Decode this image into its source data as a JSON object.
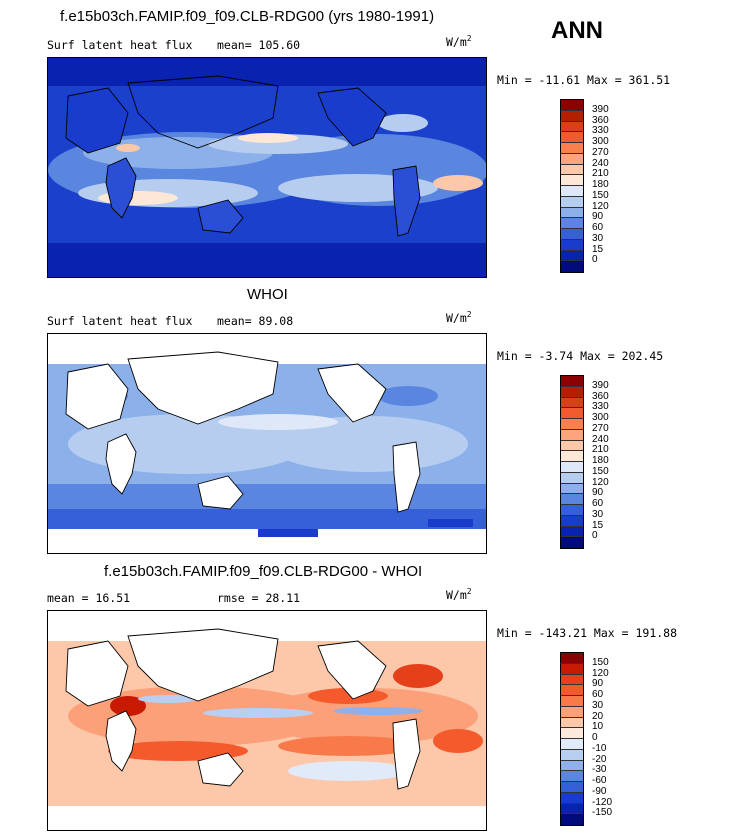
{
  "header": {
    "main_title": "f.e15b03ch.FAMIP.f09_f09.CLB-RDG00 (yrs 1980-1991)",
    "season": "ANN"
  },
  "panels": [
    {
      "title": "",
      "left_text": "Surf latent heat flux",
      "mean_text": "mean=  105.60",
      "units": "W/m",
      "units_exp": "2",
      "minmax": "Min = -11.61 Max = 361.51",
      "colorbar": {
        "labels": [
          "390",
          "360",
          "330",
          "300",
          "270",
          "240",
          "210",
          "180",
          "150",
          "120",
          "90",
          "60",
          "30",
          "15",
          "0"
        ],
        "colors": [
          "#8b0000",
          "#b22000",
          "#d8401a",
          "#f05a2e",
          "#f8804e",
          "#fca47c",
          "#fdc8aa",
          "#fde8d8",
          "#dfe8f8",
          "#b7cdf0",
          "#8cb0ea",
          "#5a86e0",
          "#3560d8",
          "#1a3ccc",
          "#0a22b0",
          "#000a7a"
        ]
      }
    },
    {
      "title": "WHOI",
      "left_text": "Surf latent heat flux",
      "mean_text": "mean=   89.08",
      "units": "W/m",
      "units_exp": "2",
      "minmax": "Min =  -3.74 Max = 202.45",
      "colorbar": {
        "labels": [
          "390",
          "360",
          "330",
          "300",
          "270",
          "240",
          "210",
          "180",
          "150",
          "120",
          "90",
          "60",
          "30",
          "15",
          "0"
        ],
        "colors": [
          "#8b0000",
          "#b22000",
          "#d8401a",
          "#f05a2e",
          "#f8804e",
          "#fca47c",
          "#fdc8aa",
          "#fde8d8",
          "#dfe8f8",
          "#b7cdf0",
          "#8cb0ea",
          "#5a86e0",
          "#3560d8",
          "#1a3ccc",
          "#0a22b0",
          "#000a7a"
        ]
      }
    },
    {
      "title": "f.e15b03ch.FAMIP.f09_f09.CLB-RDG00 - WHOI",
      "left_text": "mean =   16.51",
      "mean_text": "rmse =   28.11",
      "units": "W/m",
      "units_exp": "2",
      "minmax": "Min = -143.21 Max = 191.88",
      "colorbar": {
        "labels": [
          "150",
          "120",
          "90",
          "60",
          "30",
          "20",
          "10",
          "0",
          "-10",
          "-20",
          "-30",
          "-60",
          "-90",
          "-120",
          "-150"
        ],
        "colors": [
          "#8b0000",
          "#c81a00",
          "#e6401a",
          "#f45a2c",
          "#f87a4a",
          "#fba078",
          "#fdc8aa",
          "#fde8dc",
          "#e0eaf8",
          "#b8cff2",
          "#8fb0ea",
          "#5a86e0",
          "#3560d8",
          "#1a3ccc",
          "#0a22b0",
          "#000a7a"
        ]
      }
    }
  ]
}
